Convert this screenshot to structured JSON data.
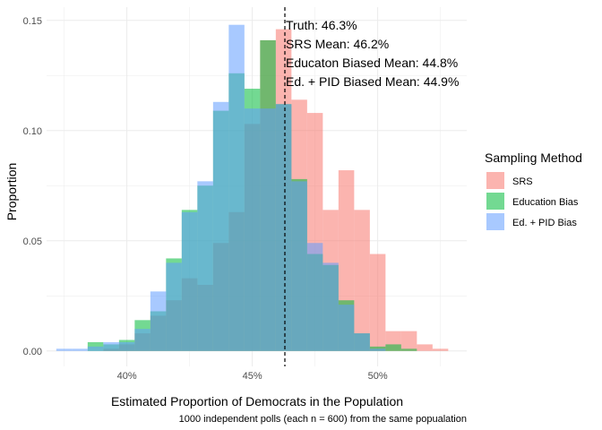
{
  "chart_data": {
    "type": "histogram",
    "xlabel": "Estimated Proportion of Democrats in the Population",
    "ylabel": "Proportion",
    "caption": "1000 independent polls (each n = 600) from the same popualation",
    "x_ticks": [
      {
        "value": 0.4,
        "label": "40%"
      },
      {
        "value": 0.45,
        "label": "45%"
      },
      {
        "value": 0.5,
        "label": "50%"
      }
    ],
    "y_ticks": [
      {
        "value": 0.0,
        "label": "0.00"
      },
      {
        "value": 0.05,
        "label": "0.05"
      },
      {
        "value": 0.1,
        "label": "0.10"
      },
      {
        "value": 0.15,
        "label": "0.15"
      }
    ],
    "xlim": [
      0.368,
      0.5355
    ],
    "ylim": [
      -0.007,
      0.156
    ],
    "bin_width": 0.00625,
    "grid": true,
    "legend": {
      "title": "Sampling Method",
      "position": "right",
      "items": [
        {
          "name": "SRS",
          "color": "#F8766D"
        },
        {
          "name": "Education Bias",
          "color": "#00BA38"
        },
        {
          "name": "Ed. + PID Bias",
          "color": "#619CFF"
        }
      ]
    },
    "fill_opacity": 0.55,
    "truth_line": {
      "x": 0.463,
      "style": "dashed"
    },
    "annotations": [
      "Truth: 46.3%",
      "SRS Mean: 46.2%",
      "Educaton Biased Mean: 44.8%",
      "Ed. + PID Biased Mean: 44.9%"
    ],
    "series": [
      {
        "name": "SRS",
        "color": "#F8766D",
        "bin_starts": [
          0.390625,
          0.396875,
          0.403125,
          0.409375,
          0.415625,
          0.421875,
          0.428125,
          0.434375,
          0.440625,
          0.446875,
          0.453125,
          0.459375,
          0.465625,
          0.471875,
          0.478125,
          0.484375,
          0.490625,
          0.496875,
          0.503125,
          0.509375,
          0.515625,
          0.521875
        ],
        "values": [
          0.001,
          0.003,
          0.008,
          0.016,
          0.023,
          0.033,
          0.03,
          0.049,
          0.063,
          0.103,
          0.141,
          0.146,
          0.114,
          0.108,
          0.064,
          0.082,
          0.064,
          0.044,
          0.009,
          0.009,
          0.003,
          0.001
        ]
      },
      {
        "name": "Education Bias",
        "color": "#00BA38",
        "bin_starts": [
          0.384375,
          0.390625,
          0.396875,
          0.403125,
          0.409375,
          0.415625,
          0.421875,
          0.428125,
          0.434375,
          0.440625,
          0.446875,
          0.453125,
          0.459375,
          0.465625,
          0.471875,
          0.478125,
          0.484375,
          0.490625,
          0.496875,
          0.503125,
          0.509375
        ],
        "values": [
          0.004,
          0.003,
          0.005,
          0.014,
          0.018,
          0.042,
          0.064,
          0.075,
          0.109,
          0.126,
          0.119,
          0.141,
          0.112,
          0.078,
          0.044,
          0.039,
          0.023,
          0.008,
          0.002,
          0.003,
          0.001
        ]
      },
      {
        "name": "Ed. + PID Bias",
        "color": "#619CFF",
        "bin_starts": [
          0.371875,
          0.378125,
          0.384375,
          0.390625,
          0.396875,
          0.403125,
          0.409375,
          0.415625,
          0.421875,
          0.428125,
          0.434375,
          0.440625,
          0.446875,
          0.453125,
          0.459375,
          0.465625,
          0.471875,
          0.478125,
          0.484375,
          0.490625,
          0.496875
        ],
        "values": [
          0.001,
          0.001,
          0.002,
          0.004,
          0.004,
          0.01,
          0.027,
          0.04,
          0.063,
          0.077,
          0.113,
          0.148,
          0.11,
          0.11,
          0.112,
          0.077,
          0.049,
          0.04,
          0.021,
          0.008,
          0.001
        ]
      }
    ]
  }
}
